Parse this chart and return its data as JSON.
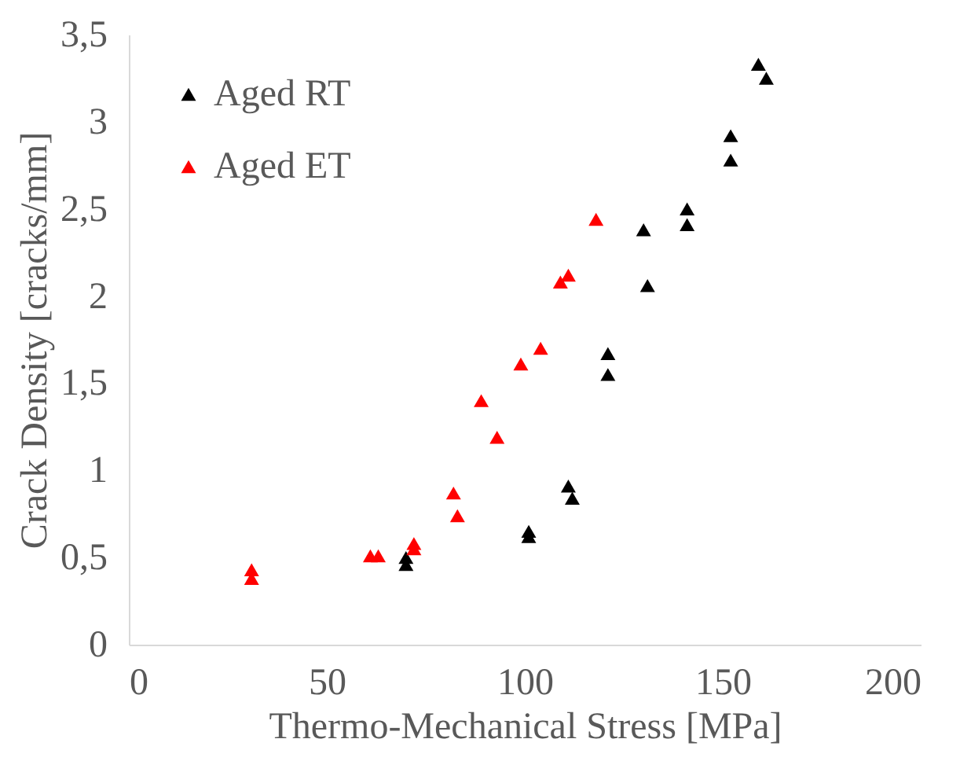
{
  "chart_data": {
    "type": "scatter",
    "xlabel": "Thermo-Mechanical Stress [MPa]",
    "ylabel": "Crack Density [cracks/mm]",
    "xlim": [
      0,
      200
    ],
    "xticks": [
      0,
      50,
      100,
      150,
      200
    ],
    "ylim": [
      0,
      3.5
    ],
    "yticks": [
      0,
      {
        "value": 0.5,
        "label": "0,5"
      },
      1,
      {
        "value": 1.5,
        "label": "1,5"
      },
      2,
      {
        "value": 2.5,
        "label": "2,5"
      },
      3,
      {
        "value": 3.5,
        "label": "3,5"
      }
    ],
    "marker": "triangle",
    "legend": "top left",
    "grid": false,
    "series": [
      {
        "name": "Aged RT",
        "color": "#000000",
        "x": [
          70,
          70,
          101,
          101,
          111,
          112,
          121,
          121,
          130,
          131,
          141,
          141,
          152,
          152,
          159,
          161
        ],
        "values": [
          0.46,
          0.5,
          0.65,
          0.62,
          0.91,
          0.84,
          1.67,
          1.55,
          2.38,
          2.06,
          2.5,
          2.41,
          2.92,
          2.78,
          3.33,
          3.25
        ]
      },
      {
        "name": "Aged ET",
        "color": "#ff0000",
        "x": [
          31,
          31,
          61,
          63,
          72,
          72,
          82,
          83,
          89,
          93,
          99,
          104,
          109,
          111,
          118
        ],
        "values": [
          0.43,
          0.38,
          0.51,
          0.51,
          0.58,
          0.55,
          0.87,
          0.74,
          1.4,
          1.19,
          1.61,
          1.7,
          2.08,
          2.12,
          2.44
        ]
      }
    ]
  }
}
